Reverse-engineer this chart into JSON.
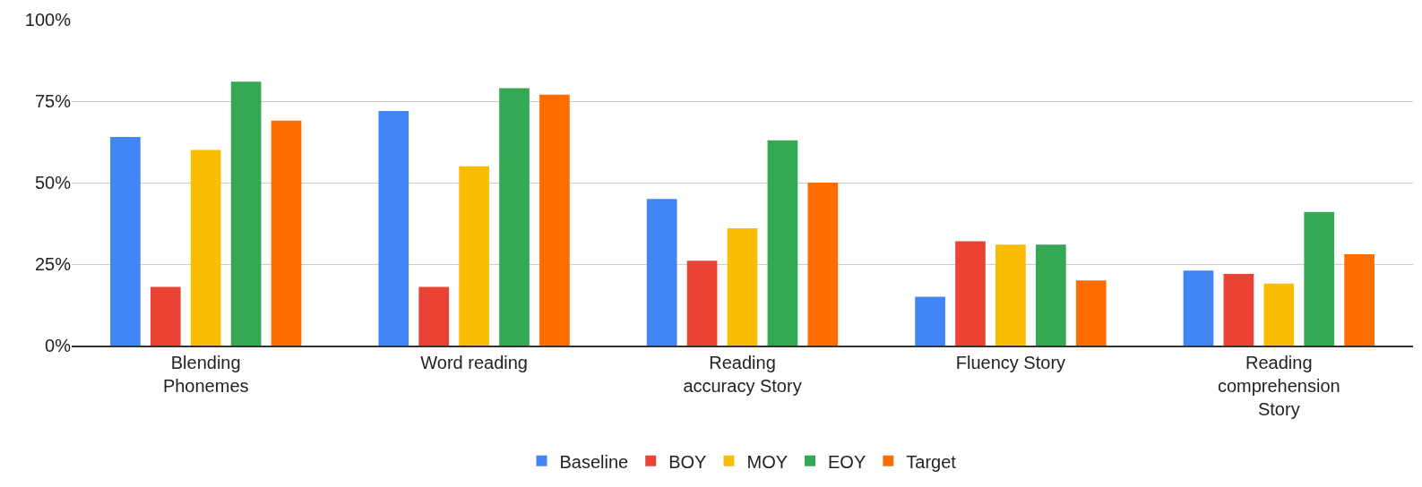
{
  "chart_data": {
    "type": "bar",
    "categories": [
      "Blending Phonemes",
      "Word reading",
      "Reading accuracy Story",
      "Fluency Story",
      "Reading comprehension Story"
    ],
    "series": [
      {
        "name": "Baseline",
        "color": "#4285f4",
        "values": [
          64,
          72,
          45,
          15,
          23
        ]
      },
      {
        "name": "BOY",
        "color": "#ea4335",
        "values": [
          18,
          18,
          26,
          32,
          22
        ]
      },
      {
        "name": "MOY",
        "color": "#fbbc04",
        "values": [
          60,
          55,
          36,
          31,
          19
        ]
      },
      {
        "name": "EOY",
        "color": "#34a853",
        "values": [
          81,
          79,
          63,
          31,
          41
        ]
      },
      {
        "name": "Target",
        "color": "#ff6d01",
        "values": [
          69,
          77,
          50,
          20,
          28
        ]
      }
    ],
    "ylim": [
      0,
      100
    ],
    "yticks": [
      {
        "value": 0,
        "label": "0%"
      },
      {
        "value": 25,
        "label": "25%"
      },
      {
        "value": 50,
        "label": "50%"
      },
      {
        "value": 75,
        "label": "75%"
      },
      {
        "value": 100,
        "label": "100%"
      }
    ],
    "grid": "y",
    "legend": "bottom"
  }
}
